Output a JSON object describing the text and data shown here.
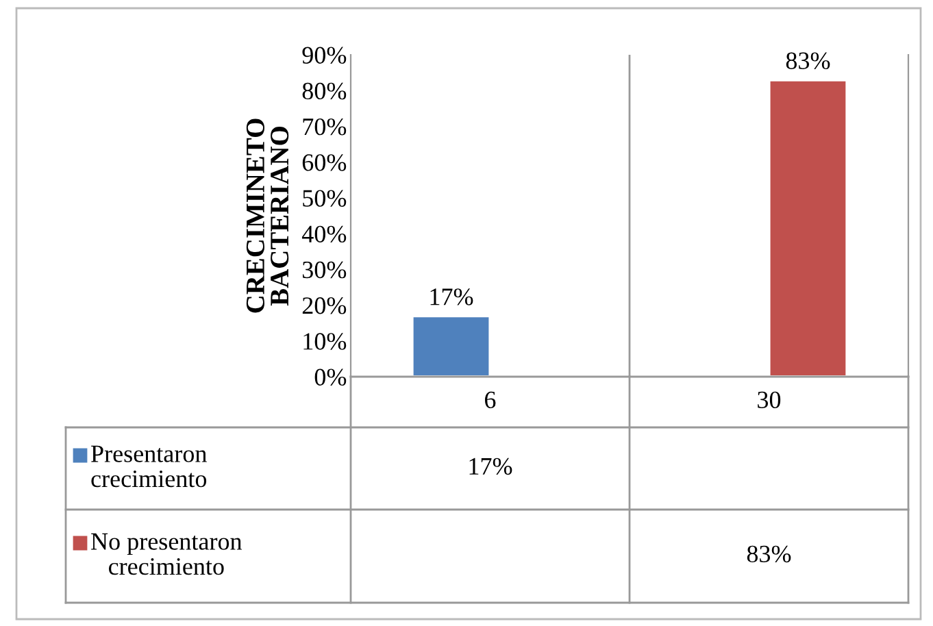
{
  "chart_data": {
    "type": "bar",
    "ylabel": "CRECIMINETO\nBACTERIANO",
    "categories": [
      "6",
      "30"
    ],
    "series": [
      {
        "name": "Presentaron crecimiento",
        "color": "#4f81bd",
        "values": [
          17,
          null
        ],
        "value_labels": [
          "17%",
          null
        ]
      },
      {
        "name": "No presentaron crecimiento",
        "color": "#c0504d",
        "values": [
          null,
          83
        ],
        "value_labels": [
          null,
          "83%"
        ]
      }
    ],
    "ylim": [
      0,
      90
    ],
    "yticks": [
      {
        "value": 0,
        "label": "0%"
      },
      {
        "value": 10,
        "label": "10%"
      },
      {
        "value": 20,
        "label": "20%"
      },
      {
        "value": 30,
        "label": "30%"
      },
      {
        "value": 40,
        "label": "40%"
      },
      {
        "value": 50,
        "label": "50%"
      },
      {
        "value": 60,
        "label": "60%"
      },
      {
        "value": 70,
        "label": "70%"
      },
      {
        "value": 80,
        "label": "80%"
      },
      {
        "value": 90,
        "label": "90%"
      }
    ],
    "grid": false,
    "legend": "bottom left"
  }
}
